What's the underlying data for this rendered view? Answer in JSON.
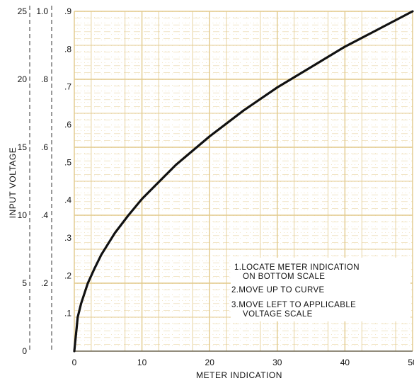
{
  "chart_data": {
    "type": "line",
    "xlabel": "METER INDICATION",
    "ylabel": "INPUT VOLTAGE",
    "xlim": [
      0,
      50
    ],
    "x_ticks": [
      "0",
      "10",
      "20",
      "30",
      "40",
      "50"
    ],
    "ylim": [
      0,
      25
    ],
    "grid": true,
    "y_scales": [
      {
        "name": "scale-25",
        "max": 25,
        "ticks": [
          "0",
          "5",
          "10",
          "15",
          "20",
          "25"
        ]
      },
      {
        "name": "scale-1.0",
        "max": 1.0,
        "ticks": [
          ".2",
          ".4",
          ".6",
          ".8",
          "1.0"
        ]
      },
      {
        "name": "scale-.5",
        "max": 0.5,
        "ticks": [
          ".1",
          ".2",
          ".3",
          ".4",
          ".5",
          ".6",
          ".7",
          ".8",
          ".9"
        ]
      }
    ],
    "series": [
      {
        "x": [
          0,
          0.5,
          1,
          2,
          3,
          4,
          5,
          6,
          8,
          10,
          12,
          15,
          20,
          25,
          30,
          35,
          40,
          45,
          50
        ],
        "y": [
          0,
          2.5,
          3.5,
          5.0,
          6.1,
          7.1,
          7.9,
          8.7,
          10.0,
          11.2,
          12.2,
          13.7,
          15.8,
          17.7,
          19.4,
          20.9,
          22.4,
          23.7,
          25.0
        ]
      }
    ],
    "annotations": [
      {
        "lines": [
          "1.LOCATE METER INDICATION",
          "ON BOTTOM SCALE"
        ]
      },
      {
        "lines": [
          "2.MOVE UP TO CURVE"
        ]
      },
      {
        "lines": [
          "3.MOVE LEFT TO APPLICABLE",
          "VOLTAGE SCALE"
        ]
      }
    ],
    "colors": {
      "grid": "#e2c98a",
      "curve": "#111111",
      "axis": "#333333"
    }
  }
}
